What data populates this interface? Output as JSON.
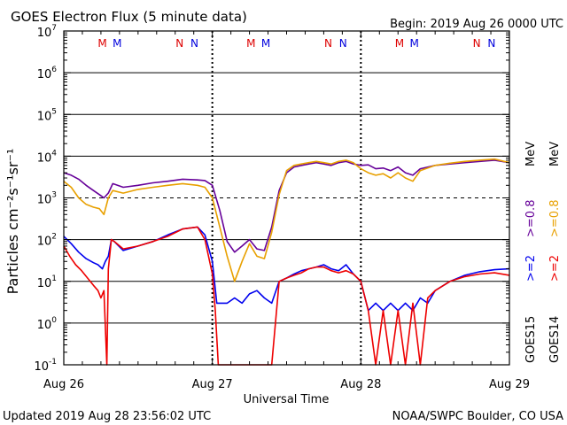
{
  "chart_data": {
    "type": "line",
    "title": "GOES Electron Flux (5 minute data)",
    "begin_label": "Begin: 2019 Aug 26 0000 UTC",
    "xlabel": "Universal Time",
    "ylabel": "Particles cm⁻²s⁻¹sr⁻¹",
    "y_scale": "log",
    "ylim": [
      0.1,
      10000000
    ],
    "y_ticks": [
      {
        "base": "10",
        "exp": "-1"
      },
      {
        "base": "10",
        "exp": "0"
      },
      {
        "base": "10",
        "exp": "1"
      },
      {
        "base": "10",
        "exp": "2"
      },
      {
        "base": "10",
        "exp": "3"
      },
      {
        "base": "10",
        "exp": "4"
      },
      {
        "base": "10",
        "exp": "5"
      },
      {
        "base": "10",
        "exp": "6"
      },
      {
        "base": "10",
        "exp": "7"
      }
    ],
    "x_day_labels": [
      "Aug 26",
      "Aug 27",
      "Aug 28",
      "Aug 29"
    ],
    "x_range_days": [
      0,
      3
    ],
    "grid": "horizontal solid at each decade, dashed at 10^3; dotted day separators",
    "legend_position": "right, vertical",
    "mn_markers": [
      {
        "day": 0.26,
        "letter": "M",
        "color": "#dd0000"
      },
      {
        "day": 0.36,
        "letter": "M",
        "color": "#0000dd"
      },
      {
        "day": 0.78,
        "letter": "N",
        "color": "#dd0000"
      },
      {
        "day": 0.88,
        "letter": "N",
        "color": "#0000dd"
      },
      {
        "day": 1.26,
        "letter": "M",
        "color": "#dd0000"
      },
      {
        "day": 1.36,
        "letter": "M",
        "color": "#0000dd"
      },
      {
        "day": 1.78,
        "letter": "N",
        "color": "#dd0000"
      },
      {
        "day": 1.88,
        "letter": "N",
        "color": "#0000dd"
      },
      {
        "day": 2.26,
        "letter": "M",
        "color": "#dd0000"
      },
      {
        "day": 2.36,
        "letter": "M",
        "color": "#0000dd"
      },
      {
        "day": 2.78,
        "letter": "N",
        "color": "#dd0000"
      },
      {
        "day": 2.88,
        "letter": "N",
        "color": "#0000dd"
      }
    ],
    "series": [
      {
        "name": "GOES15 >=0.8 MeV",
        "color": "#660099",
        "x": [
          0,
          0.05,
          0.1,
          0.15,
          0.2,
          0.24,
          0.27,
          0.3,
          0.33,
          0.4,
          0.5,
          0.6,
          0.7,
          0.8,
          0.9,
          0.95,
          1.0,
          1.05,
          1.1,
          1.15,
          1.2,
          1.25,
          1.3,
          1.35,
          1.4,
          1.45,
          1.5,
          1.55,
          1.6,
          1.65,
          1.7,
          1.75,
          1.8,
          1.85,
          1.9,
          1.95,
          2.0,
          2.05,
          2.1,
          2.15,
          2.2,
          2.25,
          2.3,
          2.35,
          2.4,
          2.5,
          2.6,
          2.7,
          2.8,
          2.9,
          3.0
        ],
        "y": [
          4000,
          3500,
          2800,
          2000,
          1500,
          1200,
          1000,
          1300,
          2200,
          1800,
          2000,
          2300,
          2500,
          2800,
          2700,
          2600,
          2000,
          500,
          90,
          50,
          70,
          100,
          60,
          55,
          200,
          1500,
          4000,
          5500,
          6000,
          6500,
          7000,
          6500,
          6000,
          7000,
          7500,
          6500,
          6000,
          6200,
          5000,
          5200,
          4500,
          5500,
          4000,
          3500,
          5000,
          6000,
          6500,
          7000,
          7500,
          8000,
          7000
        ]
      },
      {
        "name": "GOES14 >=0.8 MeV",
        "color": "#e8a000",
        "x": [
          0,
          0.05,
          0.1,
          0.15,
          0.2,
          0.24,
          0.27,
          0.3,
          0.33,
          0.4,
          0.5,
          0.6,
          0.7,
          0.8,
          0.9,
          0.95,
          1.0,
          1.05,
          1.1,
          1.15,
          1.2,
          1.25,
          1.3,
          1.35,
          1.4,
          1.45,
          1.5,
          1.55,
          1.6,
          1.65,
          1.7,
          1.75,
          1.8,
          1.85,
          1.9,
          1.95,
          2.0,
          2.05,
          2.1,
          2.15,
          2.2,
          2.25,
          2.3,
          2.35,
          2.4,
          2.5,
          2.6,
          2.7,
          2.8,
          2.9,
          3.0
        ],
        "y": [
          2500,
          1800,
          1000,
          700,
          600,
          550,
          400,
          1000,
          1500,
          1300,
          1600,
          1800,
          2000,
          2200,
          2000,
          1800,
          1000,
          200,
          40,
          10,
          30,
          80,
          40,
          35,
          150,
          1200,
          4500,
          6000,
          6500,
          7000,
          7500,
          7000,
          6500,
          7500,
          8000,
          7000,
          5000,
          4000,
          3500,
          3800,
          3000,
          4000,
          3000,
          2500,
          4500,
          6000,
          6800,
          7500,
          8000,
          8500,
          7000
        ]
      },
      {
        "name": "GOES15 >=2 MeV",
        "color": "#0000ee",
        "x": [
          0,
          0.05,
          0.1,
          0.15,
          0.2,
          0.23,
          0.26,
          0.28,
          0.3,
          0.32,
          0.34,
          0.4,
          0.5,
          0.6,
          0.7,
          0.8,
          0.9,
          0.95,
          1.0,
          1.03,
          1.06,
          1.1,
          1.15,
          1.2,
          1.25,
          1.3,
          1.35,
          1.4,
          1.45,
          1.5,
          1.55,
          1.6,
          1.65,
          1.7,
          1.75,
          1.8,
          1.85,
          1.9,
          1.95,
          2.0,
          2.05,
          2.1,
          2.15,
          2.2,
          2.25,
          2.3,
          2.35,
          2.4,
          2.45,
          2.5,
          2.6,
          2.7,
          2.8,
          2.9,
          3.0
        ],
        "y": [
          120,
          80,
          50,
          35,
          28,
          25,
          20,
          30,
          40,
          100,
          90,
          55,
          70,
          90,
          130,
          180,
          200,
          130,
          30,
          3,
          3,
          3,
          4,
          3,
          5,
          6,
          4,
          3,
          10,
          12,
          15,
          18,
          20,
          22,
          25,
          20,
          18,
          25,
          15,
          10,
          2,
          3,
          2,
          3,
          2,
          3,
          2,
          4,
          3,
          6,
          10,
          14,
          17,
          19,
          20
        ]
      },
      {
        "name": "GOES14 >=2 MeV",
        "color": "#ee0000",
        "x": [
          0,
          0.04,
          0.08,
          0.12,
          0.16,
          0.2,
          0.23,
          0.25,
          0.27,
          0.29,
          0.3,
          0.32,
          0.34,
          0.4,
          0.5,
          0.6,
          0.7,
          0.8,
          0.9,
          0.95,
          1.0,
          1.02,
          1.04,
          1.06,
          1.08,
          1.1,
          1.12,
          1.15,
          1.2,
          1.25,
          1.3,
          1.35,
          1.4,
          1.45,
          1.5,
          1.55,
          1.6,
          1.65,
          1.7,
          1.75,
          1.8,
          1.85,
          1.9,
          1.95,
          2.0,
          2.05,
          2.1,
          2.15,
          2.2,
          2.25,
          2.3,
          2.35,
          2.4,
          2.45,
          2.5,
          2.6,
          2.7,
          2.8,
          2.9,
          3.0
        ],
        "y": [
          70,
          40,
          25,
          18,
          12,
          8,
          6,
          4,
          6,
          0.1,
          20,
          100,
          90,
          60,
          70,
          90,
          120,
          180,
          200,
          100,
          15,
          2,
          0.1,
          0.1,
          0.1,
          0.1,
          0.1,
          0.1,
          0.1,
          0.1,
          0.1,
          0.1,
          0.1,
          10,
          12,
          14,
          16,
          20,
          22,
          22,
          18,
          16,
          18,
          15,
          10,
          2,
          0.1,
          2,
          0.1,
          2,
          0.1,
          3,
          0.1,
          4,
          6,
          10,
          13,
          15,
          16,
          14
        ]
      }
    ],
    "legend": {
      "goes15_label": "GOES15",
      "goes14_label": "GOES14",
      "goes15_ge2": ">=2",
      "goes15_ge08": ">=0.8",
      "goes14_ge2": ">=2",
      "goes14_ge08": ">=0.8",
      "mev": "MeV"
    }
  },
  "footer": {
    "updated": "Updated 2019 Aug 28 23:56:02 UTC",
    "credit": "NOAA/SWPC Boulder, CO USA"
  }
}
